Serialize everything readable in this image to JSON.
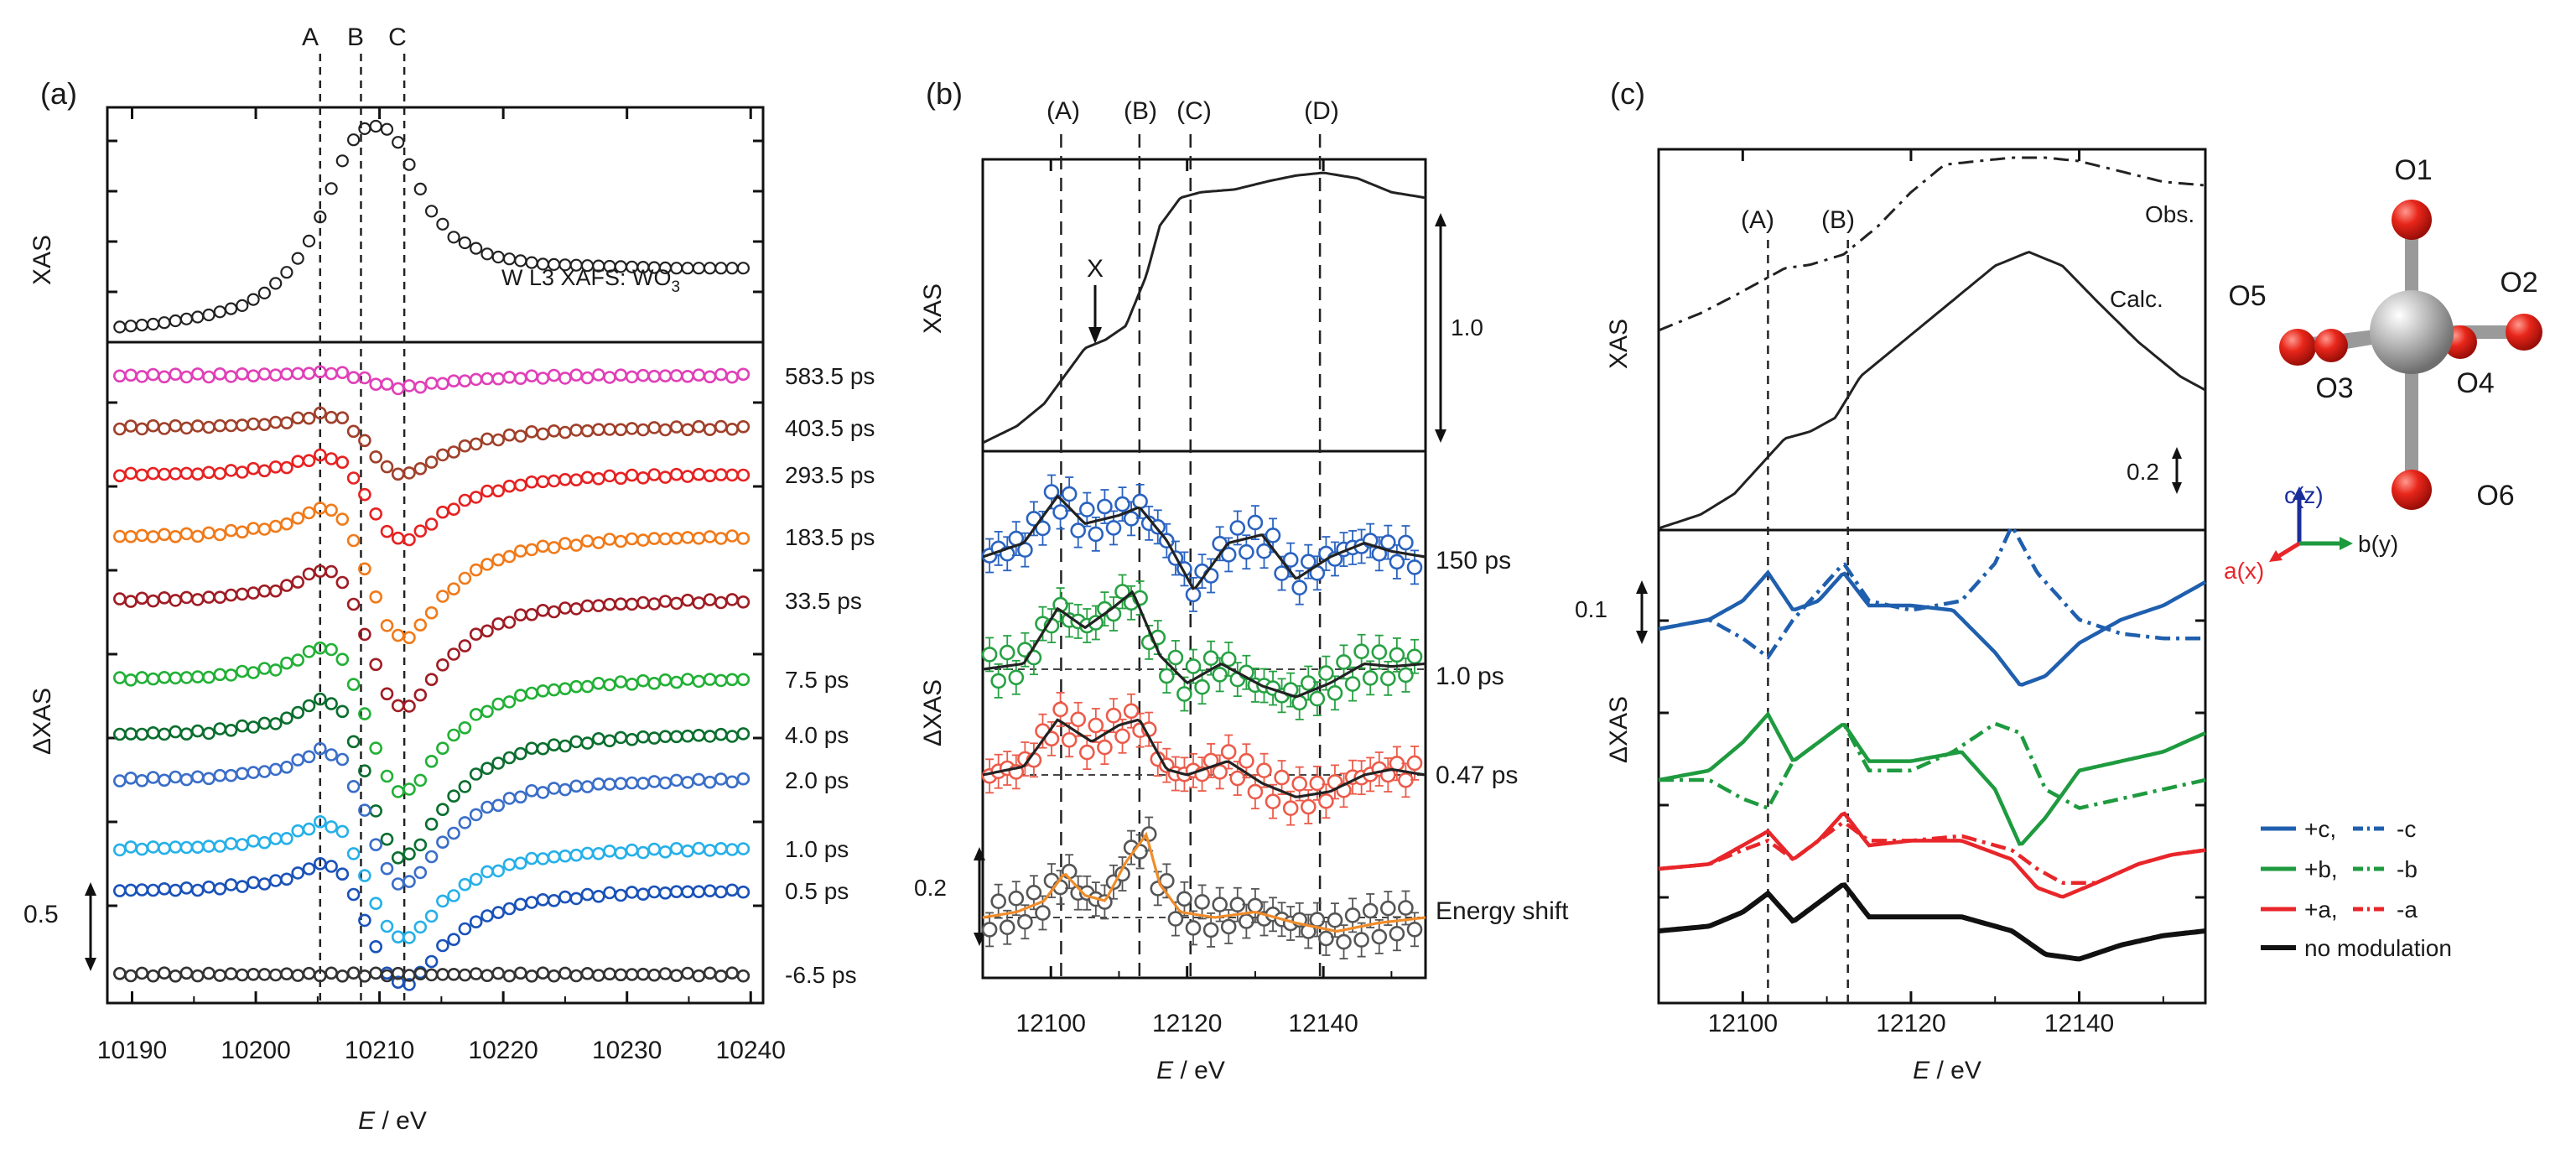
{
  "panels": {
    "a": {
      "label": "(a)",
      "markers": [
        "A",
        "B",
        "C"
      ],
      "xas_label": "XAS",
      "dxas_label": "ΔXAS",
      "xas_annotation": "W L3 XAFS: WO",
      "xas_annotation_sub": "3",
      "scale_bar": "0.5",
      "x_ticks": [
        "10190",
        "10200",
        "10210",
        "10220",
        "10230",
        "10240"
      ],
      "xlabel_italic": "E",
      "xlabel_rest": " / eV",
      "delays": [
        "583.5 ps",
        "403.5 ps",
        "293.5 ps",
        "183.5 ps",
        "33.5 ps",
        "7.5 ps",
        "4.0 ps",
        "2.0 ps",
        "1.0 ps",
        "0.5 ps",
        "-6.5 ps"
      ]
    },
    "b": {
      "label": "(b)",
      "markers": [
        "(A)",
        "(B)",
        "(C)",
        "(D)"
      ],
      "xas_label": "XAS",
      "dxas_label": "ΔXAS",
      "feature_x": "X",
      "scale_xas": "1.0",
      "scale_dxas": "0.2",
      "x_ticks": [
        "12100",
        "12120",
        "12140"
      ],
      "xlabel_italic": "E",
      "xlabel_rest": " / eV",
      "traces": [
        "150 ps",
        "1.0 ps",
        "0.47 ps",
        "Energy shift"
      ]
    },
    "c": {
      "label": "(c)",
      "markers": [
        "(A)",
        "(B)"
      ],
      "xas_label": "XAS",
      "dxas_label": "ΔXAS",
      "obs_label": "Obs.",
      "calc_label": "Calc.",
      "scale_xas": "0.2",
      "scale_dxas": "0.1",
      "x_ticks": [
        "12100",
        "12120",
        "12140"
      ],
      "xlabel_italic": "E",
      "xlabel_rest": " / eV",
      "legend": [
        {
          "pos": "+c,",
          "neg": "-c",
          "color": "#1f5fae"
        },
        {
          "pos": "+b,",
          "neg": "-b",
          "color": "#1e9a3f"
        },
        {
          "pos": "+a,",
          "neg": "-a",
          "color": "#e8262a"
        },
        {
          "pos": "no modulation",
          "neg": "",
          "color": "#111111"
        }
      ],
      "structure": {
        "atoms": [
          "O1",
          "O2",
          "O3",
          "O4",
          "O5",
          "O6"
        ],
        "axes": {
          "c": "c(z)",
          "b": "b(y)",
          "a": "a(x)"
        }
      }
    }
  },
  "colors": {
    "delay_series": [
      "#e040b8",
      "#a0402a",
      "#e62222",
      "#f07a1a",
      "#a01c24",
      "#22b036",
      "#0a6e2e",
      "#3a6ec8",
      "#26b0e8",
      "#1a52b8",
      "#333333"
    ],
    "b_traces": [
      "#2a63c0",
      "#27a143",
      "#ec5b4a",
      "#555555"
    ],
    "fit_line": "#222222",
    "energy_fit": "#f08c2a"
  },
  "chart_data": [
    {
      "type": "scatter",
      "title": "(a) W L3 XAFS: WO3",
      "xlabel": "E / eV",
      "ylabel_top": "XAS",
      "ylabel_bottom": "ΔXAS",
      "xlim": [
        10188,
        10241
      ],
      "vlines": {
        "A": 10205.2,
        "B": 10208.5,
        "C": 10212
      },
      "xas": {
        "x": [
          10188,
          10192,
          10196,
          10199,
          10201,
          10203,
          10204.5,
          10205.5,
          10206.5,
          10207.5,
          10208.5,
          10209.5,
          10210.5,
          10211.5,
          10212.5,
          10214,
          10216,
          10219,
          10223,
          10228,
          10234,
          10241
        ],
        "y": [
          0.02,
          0.04,
          0.08,
          0.13,
          0.2,
          0.32,
          0.46,
          0.6,
          0.76,
          0.9,
          0.98,
          1.0,
          0.99,
          0.92,
          0.8,
          0.6,
          0.46,
          0.37,
          0.33,
          0.32,
          0.31,
          0.31
        ]
      },
      "series": [
        {
          "name": "583.5 ps",
          "amplitude": 0.08
        },
        {
          "name": "403.5 ps",
          "amplitude": 0.32
        },
        {
          "name": "293.5 ps",
          "amplitude": 0.45
        },
        {
          "name": "183.5 ps",
          "amplitude": 0.7
        },
        {
          "name": "33.5 ps",
          "amplitude": 0.74
        },
        {
          "name": "7.5 ps",
          "amplitude": 0.78
        },
        {
          "name": "4.0 ps",
          "amplitude": 0.85
        },
        {
          "name": "2.0 ps",
          "amplitude": 0.72
        },
        {
          "name": "1.0 ps",
          "amplitude": 0.62
        },
        {
          "name": "0.5 ps",
          "amplitude": 0.65
        },
        {
          "name": "-6.5 ps",
          "amplitude": 0.0
        }
      ],
      "delta_profile": {
        "x": [
          10188,
          10196,
          10202,
          10205.5,
          10207,
          10208.5,
          10210,
          10211,
          10212,
          10213,
          10215,
          10218,
          10222,
          10228,
          10235,
          10241
        ],
        "y": [
          0.0,
          0.02,
          0.1,
          0.3,
          0.18,
          -0.2,
          -0.7,
          -0.95,
          -1.0,
          -0.92,
          -0.6,
          -0.3,
          -0.12,
          -0.04,
          -0.01,
          0.0
        ]
      }
    },
    {
      "type": "line",
      "title": "(b)",
      "xlabel": "E / eV",
      "xlim": [
        12090,
        12155
      ],
      "vlines": {
        "(A)": 12101.5,
        "(B)": 12113,
        "(C)": 12120.5,
        "(D)": 12139.5
      },
      "xas": {
        "x": [
          12090,
          12095,
          12099,
          12102,
          12105,
          12108,
          12111,
          12114,
          12116,
          12119,
          12122,
          12127,
          12132,
          12136,
          12140,
          12145,
          12150,
          12155
        ],
        "y": [
          0.0,
          0.06,
          0.14,
          0.24,
          0.34,
          0.37,
          0.42,
          0.6,
          0.78,
          0.88,
          0.9,
          0.91,
          0.94,
          0.96,
          0.97,
          0.95,
          0.9,
          0.88
        ]
      },
      "series": [
        {
          "name": "150 ps",
          "fit_x": [
            12090,
            12096,
            12101,
            12105,
            12110,
            12113,
            12117,
            12121,
            12126,
            12131,
            12136,
            12141,
            12146,
            12150,
            12155
          ],
          "fit_y": [
            0.0,
            0.05,
            0.22,
            0.12,
            0.15,
            0.18,
            0.06,
            -0.12,
            0.05,
            0.08,
            -0.08,
            0.0,
            0.05,
            0.02,
            0.0
          ]
        },
        {
          "name": "1.0 ps",
          "fit_x": [
            12090,
            12096,
            12101,
            12105,
            12109,
            12112,
            12116,
            12120,
            12125,
            12131,
            12136,
            12141,
            12146,
            12150,
            12155
          ],
          "fit_y": [
            0.0,
            0.02,
            0.22,
            0.15,
            0.22,
            0.28,
            0.05,
            -0.05,
            0.02,
            -0.06,
            -0.1,
            -0.05,
            0.02,
            0.01,
            0.02
          ]
        },
        {
          "name": "0.47 ps",
          "fit_x": [
            12090,
            12096,
            12101,
            12106,
            12110,
            12113,
            12117,
            12120,
            12126,
            12131,
            12136,
            12141,
            12146,
            12150,
            12155
          ],
          "fit_y": [
            0.0,
            0.03,
            0.2,
            0.12,
            0.18,
            0.2,
            0.02,
            0.0,
            0.05,
            -0.03,
            -0.08,
            -0.06,
            0.0,
            0.02,
            0.0
          ]
        },
        {
          "name": "Energy shift",
          "fit_x": [
            12090,
            12095,
            12099,
            12102,
            12105,
            12108,
            12111,
            12114,
            12116,
            12119,
            12124,
            12130,
            12136,
            12142,
            12148,
            12155
          ],
          "fit_y": [
            0.0,
            0.02,
            0.06,
            0.16,
            0.08,
            0.06,
            0.2,
            0.3,
            0.12,
            0.02,
            0.0,
            0.02,
            -0.02,
            -0.05,
            -0.02,
            0.0
          ]
        }
      ]
    },
    {
      "type": "line",
      "title": "(c)",
      "xlabel": "E / eV",
      "xlim": [
        12090,
        12155
      ],
      "vlines": {
        "(A)": 12103,
        "(B)": 12112.5
      },
      "obs": {
        "x": [
          12090,
          12095,
          12099,
          12102,
          12105,
          12108,
          12112,
          12116,
          12120,
          12124,
          12128,
          12132,
          12136,
          12140,
          12145,
          12150,
          12155
        ],
        "y": [
          0.5,
          0.55,
          0.6,
          0.64,
          0.68,
          0.69,
          0.72,
          0.8,
          0.9,
          0.98,
          0.99,
          1.0,
          1.0,
          0.99,
          0.96,
          0.93,
          0.92
        ]
      },
      "calc": {
        "x": [
          12090,
          12095,
          12099,
          12102,
          12105,
          12108,
          12111,
          12114,
          12118,
          12122,
          12126,
          12130,
          12134,
          12138,
          12142,
          12147,
          12152,
          12155
        ],
        "y": [
          0.0,
          0.04,
          0.1,
          0.18,
          0.26,
          0.28,
          0.32,
          0.44,
          0.52,
          0.6,
          0.68,
          0.76,
          0.8,
          0.76,
          0.66,
          0.54,
          0.44,
          0.4
        ]
      },
      "series": [
        {
          "name": "+c",
          "fit_x": [
            12090,
            12096,
            12100,
            12103,
            12106,
            12109,
            12112,
            12115,
            12120,
            12125,
            12130,
            12133,
            12136,
            12140,
            12145,
            12150,
            12155
          ],
          "fit_y": [
            0.0,
            0.02,
            0.06,
            0.12,
            0.04,
            0.06,
            0.12,
            0.05,
            0.05,
            0.04,
            -0.05,
            -0.12,
            -0.1,
            -0.03,
            0.02,
            0.05,
            0.1
          ]
        },
        {
          "name": "-c",
          "fit_x": [
            12090,
            12096,
            12100,
            12103,
            12106,
            12109,
            12112,
            12115,
            12120,
            12126,
            12130,
            12132,
            12135,
            12140,
            12145,
            12150,
            12155
          ],
          "fit_y": [
            0.0,
            0.02,
            -0.02,
            -0.06,
            0.02,
            0.08,
            0.14,
            0.06,
            0.04,
            0.06,
            0.14,
            0.22,
            0.12,
            0.02,
            -0.01,
            -0.02,
            -0.02
          ]
        },
        {
          "name": "+b",
          "fit_x": [
            12090,
            12096,
            12100,
            12103,
            12106,
            12109,
            12112,
            12115,
            12120,
            12126,
            12130,
            12133,
            12136,
            12140,
            12145,
            12150,
            12155
          ],
          "fit_y": [
            0.0,
            0.02,
            0.08,
            0.14,
            0.04,
            0.08,
            0.12,
            0.04,
            0.04,
            0.06,
            -0.02,
            -0.14,
            -0.08,
            0.02,
            0.04,
            0.06,
            0.1
          ]
        },
        {
          "name": "-b",
          "fit_x": [
            12090,
            12096,
            12100,
            12103,
            12106,
            12109,
            12112,
            12115,
            12120,
            12125,
            12130,
            12133,
            12136,
            12140,
            12145,
            12150,
            12155
          ],
          "fit_y": [
            0.0,
            0.0,
            -0.04,
            -0.06,
            0.04,
            0.08,
            0.12,
            0.02,
            0.02,
            0.06,
            0.12,
            0.1,
            -0.02,
            -0.06,
            -0.04,
            -0.02,
            0.0
          ]
        },
        {
          "name": "+a",
          "fit_x": [
            12090,
            12096,
            12100,
            12103,
            12106,
            12109,
            12112,
            12115,
            12120,
            12126,
            12132,
            12135,
            12138,
            12142,
            12147,
            12151,
            12155
          ],
          "fit_y": [
            0.0,
            0.01,
            0.05,
            0.08,
            0.02,
            0.06,
            0.12,
            0.05,
            0.06,
            0.06,
            0.02,
            -0.04,
            -0.06,
            -0.03,
            0.01,
            0.03,
            0.04
          ]
        },
        {
          "name": "-a",
          "fit_x": [
            12090,
            12096,
            12100,
            12103,
            12106,
            12109,
            12112,
            12115,
            12120,
            12126,
            12132,
            12135,
            12138,
            12142,
            12147,
            12151,
            12155
          ],
          "fit_y": [
            0.0,
            0.01,
            0.04,
            0.06,
            0.02,
            0.06,
            0.1,
            0.06,
            0.06,
            0.07,
            0.04,
            0.0,
            -0.03,
            -0.03,
            0.01,
            0.03,
            0.04
          ]
        },
        {
          "name": "no modulation",
          "fit_x": [
            12090,
            12096,
            12100,
            12103,
            12106,
            12109,
            12112,
            12115,
            12120,
            12126,
            12132,
            12136,
            12140,
            12145,
            12150,
            12155
          ],
          "fit_y": [
            0.0,
            0.01,
            0.04,
            0.08,
            0.02,
            0.06,
            0.1,
            0.03,
            0.03,
            0.03,
            0.0,
            -0.05,
            -0.06,
            -0.03,
            -0.01,
            0.0
          ]
        }
      ]
    }
  ]
}
